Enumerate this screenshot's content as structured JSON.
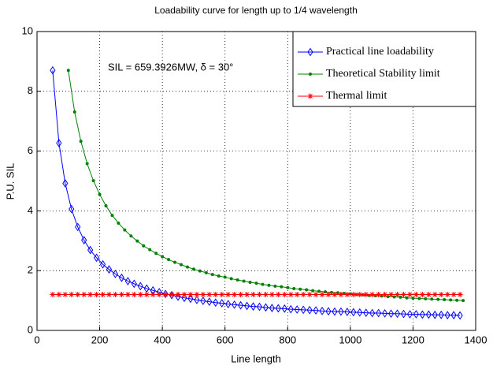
{
  "chart_data": {
    "type": "line",
    "title": "Loadability curve for length up to 1/4 wavelength",
    "xlabel": "Line length",
    "ylabel": "P.U. SIL",
    "annotation": "SIL = 659.3926MW,  δ = 30°",
    "xlim": [
      0,
      1400
    ],
    "xticks": [
      0,
      200,
      400,
      600,
      800,
      1000,
      1200,
      1400
    ],
    "ylim": [
      0,
      10
    ],
    "yticks": [
      0,
      2,
      4,
      6,
      8,
      10
    ],
    "grid": true,
    "legend": "upper right",
    "series": [
      {
        "name": "Practical line loadability",
        "color": "#0000ff",
        "marker": "diamond",
        "x": [
          50,
          70,
          90,
          110,
          130,
          150,
          170,
          190,
          210,
          230,
          250,
          270,
          290,
          310,
          330,
          350,
          370,
          390,
          410,
          430,
          450,
          470,
          490,
          510,
          530,
          550,
          570,
          590,
          610,
          630,
          650,
          670,
          690,
          710,
          730,
          750,
          770,
          790,
          810,
          830,
          850,
          870,
          890,
          910,
          930,
          950,
          970,
          990,
          1010,
          1030,
          1050,
          1070,
          1090,
          1110,
          1130,
          1150,
          1170,
          1190,
          1210,
          1230,
          1250,
          1270,
          1290,
          1310,
          1330,
          1350
        ],
        "values": [
          8.7,
          6.27,
          4.92,
          4.06,
          3.46,
          3.02,
          2.69,
          2.43,
          2.21,
          2.04,
          1.89,
          1.76,
          1.65,
          1.56,
          1.48,
          1.4,
          1.34,
          1.28,
          1.22,
          1.18,
          1.13,
          1.09,
          1.06,
          1.02,
          0.99,
          0.96,
          0.93,
          0.91,
          0.88,
          0.86,
          0.84,
          0.82,
          0.8,
          0.79,
          0.77,
          0.75,
          0.74,
          0.73,
          0.71,
          0.7,
          0.69,
          0.68,
          0.67,
          0.65,
          0.64,
          0.63,
          0.63,
          0.62,
          0.61,
          0.6,
          0.59,
          0.58,
          0.58,
          0.57,
          0.56,
          0.56,
          0.55,
          0.54,
          0.54,
          0.53,
          0.53,
          0.52,
          0.52,
          0.51,
          0.51,
          0.5
        ]
      },
      {
        "name": "Theoretical Stability limit",
        "color": "#008000",
        "marker": "dot",
        "x": [
          100,
          120,
          140,
          160,
          180,
          200,
          220,
          240,
          260,
          280,
          300,
          320,
          340,
          360,
          380,
          400,
          420,
          440,
          460,
          480,
          500,
          520,
          540,
          560,
          580,
          600,
          620,
          640,
          660,
          680,
          700,
          720,
          740,
          760,
          780,
          800,
          820,
          840,
          860,
          880,
          900,
          920,
          940,
          960,
          980,
          1000,
          1020,
          1040,
          1060,
          1080,
          1100,
          1120,
          1140,
          1160,
          1180,
          1200,
          1220,
          1240,
          1260,
          1280,
          1300,
          1320,
          1340,
          1360
        ],
        "values": [
          8.7,
          7.31,
          6.33,
          5.58,
          5.01,
          4.55,
          4.17,
          3.85,
          3.59,
          3.36,
          3.16,
          2.99,
          2.83,
          2.7,
          2.58,
          2.47,
          2.37,
          2.28,
          2.2,
          2.12,
          2.05,
          1.99,
          1.93,
          1.87,
          1.82,
          1.78,
          1.73,
          1.69,
          1.65,
          1.61,
          1.58,
          1.54,
          1.51,
          1.48,
          1.46,
          1.43,
          1.4,
          1.38,
          1.36,
          1.33,
          1.31,
          1.29,
          1.27,
          1.26,
          1.24,
          1.22,
          1.2,
          1.19,
          1.17,
          1.16,
          1.15,
          1.13,
          1.12,
          1.11,
          1.09,
          1.08,
          1.07,
          1.06,
          1.05,
          1.04,
          1.03,
          1.02,
          1.01,
          1.0
        ]
      },
      {
        "name": "Thermal limit",
        "color": "#ff0000",
        "marker": "star",
        "x": [
          50,
          70,
          90,
          110,
          130,
          150,
          170,
          190,
          210,
          230,
          250,
          270,
          290,
          310,
          330,
          350,
          370,
          390,
          410,
          430,
          450,
          470,
          490,
          510,
          530,
          550,
          570,
          590,
          610,
          630,
          650,
          670,
          690,
          710,
          730,
          750,
          770,
          790,
          810,
          830,
          850,
          870,
          890,
          910,
          930,
          950,
          970,
          990,
          1010,
          1030,
          1050,
          1070,
          1090,
          1110,
          1130,
          1150,
          1170,
          1190,
          1210,
          1230,
          1250,
          1270,
          1290,
          1310,
          1330,
          1350
        ],
        "values": [
          1.2,
          1.2,
          1.2,
          1.2,
          1.2,
          1.2,
          1.2,
          1.2,
          1.2,
          1.2,
          1.2,
          1.2,
          1.2,
          1.2,
          1.2,
          1.2,
          1.2,
          1.2,
          1.2,
          1.2,
          1.2,
          1.2,
          1.2,
          1.2,
          1.2,
          1.2,
          1.2,
          1.2,
          1.2,
          1.2,
          1.2,
          1.2,
          1.2,
          1.2,
          1.2,
          1.2,
          1.2,
          1.2,
          1.2,
          1.2,
          1.2,
          1.2,
          1.2,
          1.2,
          1.2,
          1.2,
          1.2,
          1.2,
          1.2,
          1.2,
          1.2,
          1.2,
          1.2,
          1.2,
          1.2,
          1.2,
          1.2,
          1.2,
          1.2,
          1.2,
          1.2,
          1.2,
          1.2,
          1.2,
          1.2,
          1.2
        ]
      }
    ]
  }
}
